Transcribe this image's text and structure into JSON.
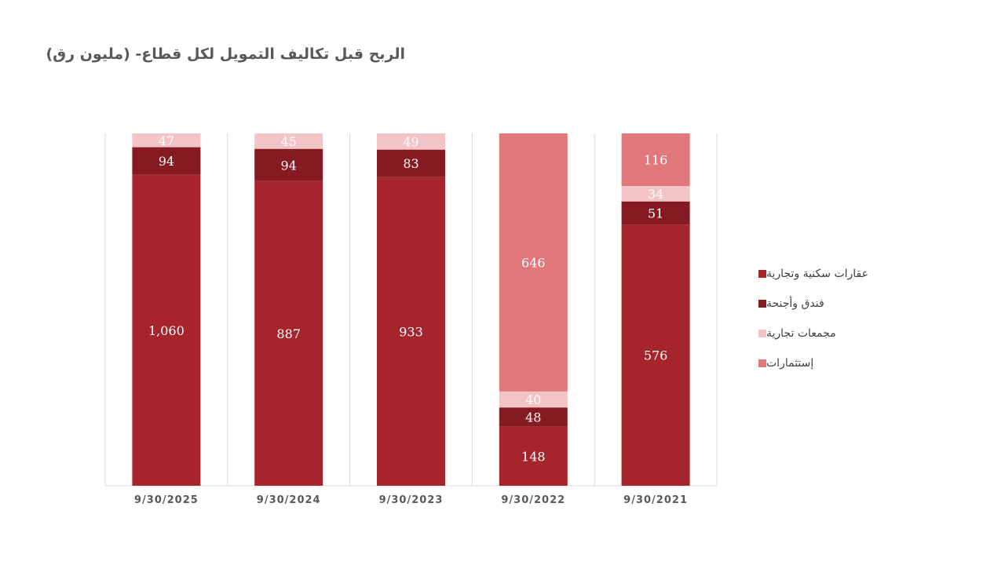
{
  "chart_data": {
    "type": "bar",
    "stacked": "percent",
    "title": "الربح قبل تكاليف التمويل لكل قطاع- (مليون رق)",
    "categories": [
      "9/30/2025",
      "9/30/2024",
      "9/30/2023",
      "9/30/2022",
      "9/30/2021"
    ],
    "series": [
      {
        "name": "عقارات سكنية وتجارية",
        "color": "#a6242b",
        "values": [
          1060,
          887,
          933,
          148,
          576
        ],
        "labels": [
          "1,060",
          "887",
          "933",
          "148",
          "576"
        ]
      },
      {
        "name": "فندق وأجنحة",
        "color": "#851a22",
        "values": [
          94,
          94,
          83,
          48,
          51
        ],
        "labels": [
          "94",
          "94",
          "83",
          "48",
          "51"
        ]
      },
      {
        "name": "مجمعات تجارية",
        "color": "#f2c4c6",
        "values": [
          47,
          45,
          49,
          40,
          34
        ],
        "labels": [
          "47",
          "45",
          "49",
          "40",
          "34"
        ]
      },
      {
        "name": "إستثمارات",
        "color": "#e0777b",
        "values": [
          0,
          0,
          0,
          646,
          116
        ],
        "labels": [
          "",
          "",
          "",
          "646",
          "116"
        ]
      }
    ],
    "legend_position": "right",
    "grid": false
  }
}
